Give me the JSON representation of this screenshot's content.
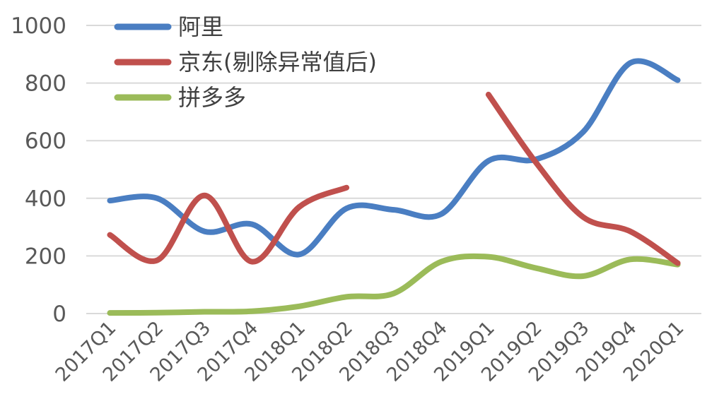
{
  "chart_data": {
    "type": "line",
    "title": "",
    "xlabel": "",
    "ylabel": "",
    "ylim": [
      0,
      1000
    ],
    "yticks": [
      0,
      200,
      400,
      600,
      800,
      1000
    ],
    "grid": true,
    "legend_position": "top-left",
    "categories": [
      "2017Q1",
      "2017Q2",
      "2017Q3",
      "2017Q4",
      "2018Q1",
      "2018Q2",
      "2018Q3",
      "2018Q4",
      "2019Q1",
      "2019Q2",
      "2019Q3",
      "2019Q4",
      "2020Q1"
    ],
    "series": [
      {
        "name": "阿里",
        "color": "#4a7ec2",
        "values": [
          392,
          400,
          285,
          310,
          205,
          365,
          360,
          345,
          530,
          535,
          630,
          870,
          810
        ]
      },
      {
        "name": "京东(剔除异常值后)",
        "color": "#c0504d",
        "values": [
          273,
          185,
          410,
          180,
          370,
          437,
          null,
          null,
          760,
          525,
          335,
          285,
          175
        ]
      },
      {
        "name": "拼多多",
        "color": "#9bbb59",
        "values": [
          2,
          3,
          6,
          8,
          25,
          58,
          70,
          180,
          197,
          158,
          130,
          188,
          170
        ]
      }
    ]
  }
}
